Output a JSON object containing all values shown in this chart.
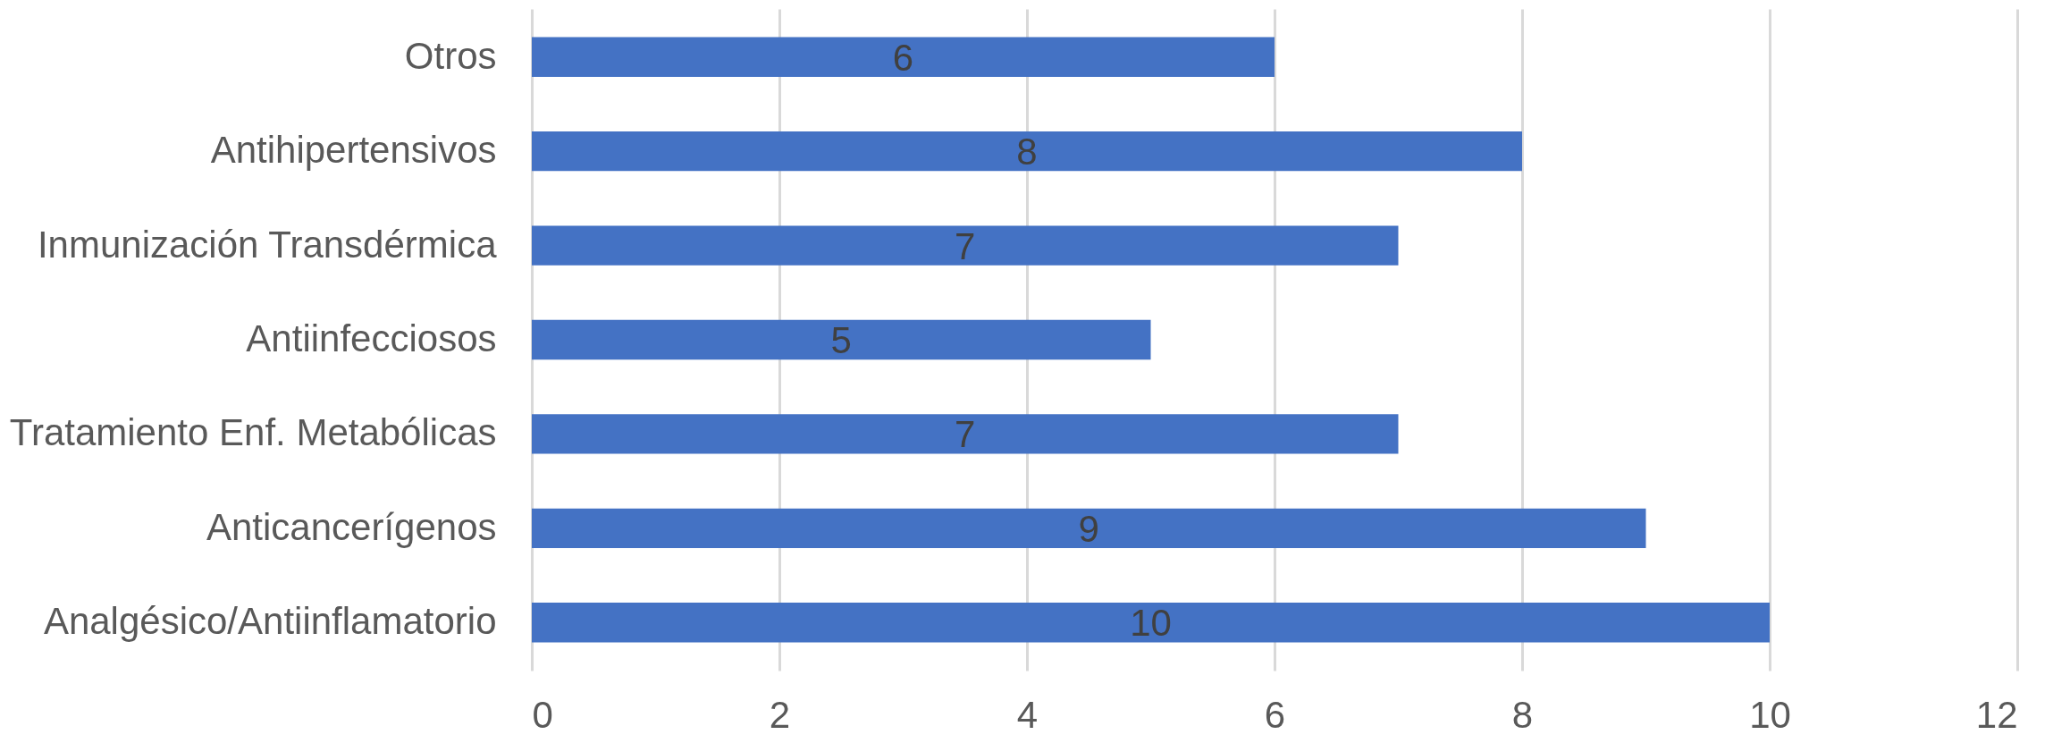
{
  "chart_data": {
    "type": "bar",
    "orientation": "horizontal",
    "categories": [
      "Otros",
      "Antihipertensivos",
      "Inmunización Transdérmica",
      "Antiinfecciosos",
      "Tratamiento Enf. Metabólicas",
      "Anticancerígenos",
      "Analgésico/Antiinflamatorio"
    ],
    "values": [
      6,
      8,
      7,
      5,
      7,
      9,
      10
    ],
    "color": "#4472c4",
    "xlim": [
      0,
      12
    ],
    "xticks": [
      0,
      2,
      4,
      6,
      8,
      10,
      12
    ],
    "grid": "x",
    "data_labels": true
  }
}
